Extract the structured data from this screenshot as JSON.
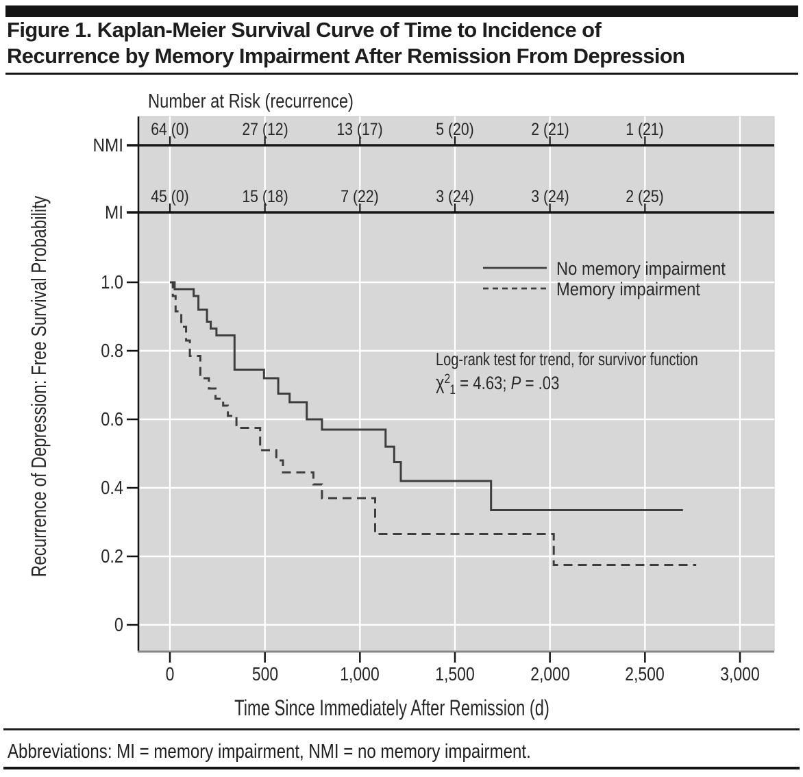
{
  "figure": {
    "title_line1": "Figure 1. Kaplan-Meier Survival Curve of Time to Incidence of",
    "title_line2": "Recurrence by Memory Impairment After Remission From Depression",
    "footer": "Abbreviations: MI = memory impairment, NMI = no memory impairment."
  },
  "chart_data": {
    "type": "line",
    "subtype": "kaplan-meier-step",
    "title": "Kaplan-Meier Survival Curve of Time to Incidence of Recurrence by Memory Impairment After Remission From Depression",
    "xlabel": "Time Since Immediately After Remission (d)",
    "ylabel": "Recurrence of Depression: Free Survival Probability",
    "xlim": [
      0,
      3180
    ],
    "ylim": [
      0,
      1
    ],
    "grid": true,
    "x_ticks": {
      "values": [
        0,
        500,
        1000,
        1500,
        2000,
        2500,
        3000
      ],
      "labels": [
        "0",
        "500",
        "1,000",
        "1,500",
        "2,000",
        "2,500",
        "3,000"
      ]
    },
    "y_ticks": {
      "values": [
        0,
        0.2,
        0.4,
        0.6,
        0.8,
        1.0
      ],
      "labels": [
        "0",
        "0.2",
        "0.4",
        "0.6",
        "0.8",
        "1.0"
      ]
    },
    "legend": {
      "position": "upper right",
      "items": [
        {
          "label": "No memory impairment",
          "style": "solid"
        },
        {
          "label": "Memory impairment",
          "style": "dashed"
        }
      ]
    },
    "series": [
      {
        "name": "No memory impairment",
        "group": "NMI",
        "line": "solid",
        "steps": [
          [
            0,
            1.0
          ],
          [
            25,
            0.98
          ],
          [
            125,
            0.96
          ],
          [
            150,
            0.92
          ],
          [
            195,
            0.885
          ],
          [
            215,
            0.865
          ],
          [
            245,
            0.845
          ],
          [
            340,
            0.745
          ],
          [
            495,
            0.72
          ],
          [
            570,
            0.675
          ],
          [
            630,
            0.65
          ],
          [
            720,
            0.6
          ],
          [
            800,
            0.57
          ],
          [
            1135,
            0.52
          ],
          [
            1180,
            0.475
          ],
          [
            1215,
            0.42
          ],
          [
            1690,
            0.335
          ]
        ],
        "end_day": 2700
      },
      {
        "name": "Memory impairment",
        "group": "MI",
        "line": "dashed",
        "steps": [
          [
            0,
            1.0
          ],
          [
            15,
            0.96
          ],
          [
            30,
            0.915
          ],
          [
            60,
            0.87
          ],
          [
            85,
            0.83
          ],
          [
            105,
            0.785
          ],
          [
            160,
            0.72
          ],
          [
            205,
            0.69
          ],
          [
            240,
            0.66
          ],
          [
            280,
            0.64
          ],
          [
            305,
            0.61
          ],
          [
            350,
            0.575
          ],
          [
            475,
            0.51
          ],
          [
            560,
            0.48
          ],
          [
            595,
            0.445
          ],
          [
            755,
            0.41
          ],
          [
            800,
            0.37
          ],
          [
            1080,
            0.265
          ],
          [
            2020,
            0.175
          ]
        ],
        "end_day": 2770
      }
    ],
    "number_at_risk": {
      "header": "Number at Risk (recurrence)",
      "time_points": [
        0,
        500,
        1000,
        1500,
        2000,
        2500
      ],
      "rows": [
        {
          "label": "NMI",
          "values": [
            "64 (0)",
            "27 (12)",
            "13 (17)",
            "5 (20)",
            "2 (21)",
            "1 (21)"
          ]
        },
        {
          "label": "MI",
          "values": [
            "45 (0)",
            "15 (18)",
            "7 (22)",
            "3 (24)",
            "3 (24)",
            "2 (25)"
          ]
        }
      ]
    },
    "annotation": {
      "line1": "Log-rank test for trend, for survivor function",
      "chi_symbol": "χ",
      "chi_sup": "2",
      "chi_sub": "1",
      "equals_value": " = 4.63; ",
      "p_symbol": "P",
      "p_value": " = .03"
    },
    "colors": {
      "plot_background": "#d7d7d7",
      "gridline": "#ffffff",
      "curve": "#3d3d3d",
      "axis": "#111111",
      "bottom_axis": "#858585"
    }
  }
}
